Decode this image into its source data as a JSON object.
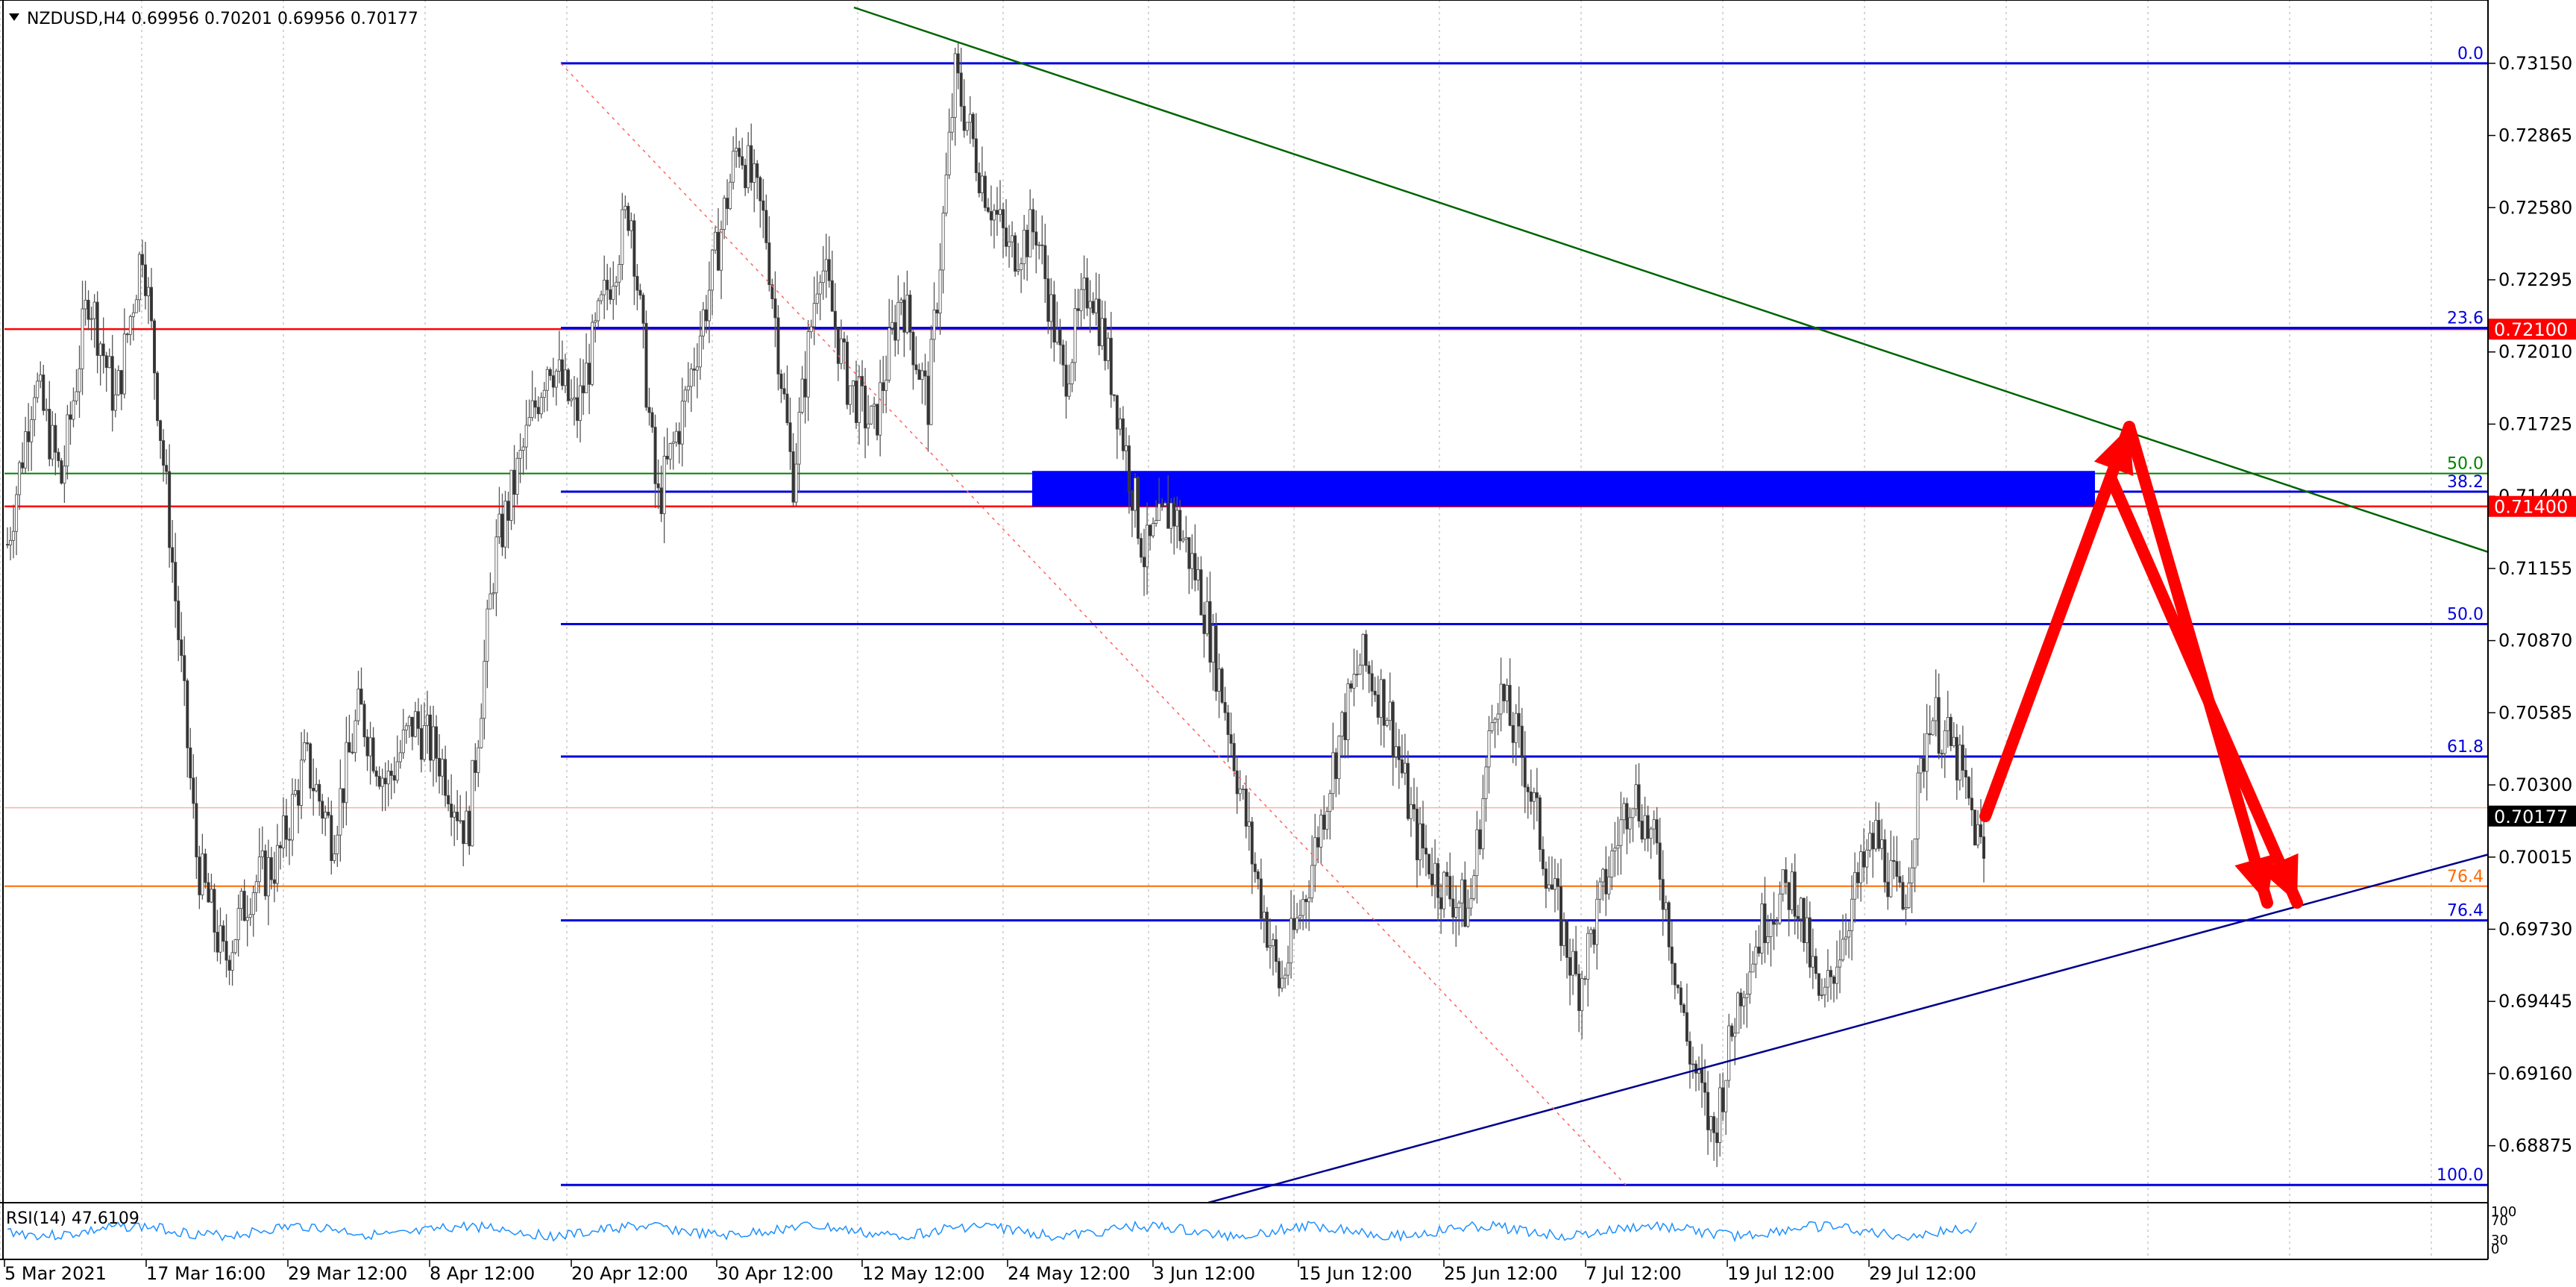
{
  "header": {
    "symbol": "NZDUSD,H4",
    "ohlc": "0.69956 0.70201 0.69956 0.70177"
  },
  "chart_data": {
    "type": "candlestick",
    "instrument": "NZDUSD",
    "timeframe": "H4",
    "ylim": [
      0.6865,
      0.734
    ],
    "price_ticks": [
      "0.73150",
      "0.72865",
      "0.72580",
      "0.72295",
      "0.72010",
      "0.71725",
      "0.71440",
      "0.71155",
      "0.70870",
      "0.70585",
      "0.70300",
      "0.70015",
      "0.69730",
      "0.69445",
      "0.69160",
      "0.68875"
    ],
    "time_ticks": [
      "5 Mar 2021",
      "17 Mar 16:00",
      "29 Mar 12:00",
      "8 Apr 12:00",
      "20 Apr 12:00",
      "30 Apr 12:00",
      "12 May 12:00",
      "24 May 12:00",
      "3 Jun 12:00",
      "15 Jun 12:00",
      "25 Jun 12:00",
      "7 Jul 12:00",
      "19 Jul 12:00",
      "29 Jul 12:00"
    ],
    "current_price": "0.70177",
    "horizontal_levels": [
      {
        "price": 0.721,
        "label": "0.72100",
        "color": "#ff0000"
      },
      {
        "price": 0.714,
        "label": "0.71400",
        "color": "#ff0000"
      }
    ],
    "fib_blue": [
      {
        "label": "0.0",
        "price": 0.7315
      },
      {
        "label": "23.6",
        "price": 0.72105
      },
      {
        "label": "38.2",
        "price": 0.71458
      },
      {
        "label": "50.0",
        "price": 0.70935
      },
      {
        "label": "61.8",
        "price": 0.70412
      },
      {
        "label": "76.4",
        "price": 0.69765
      },
      {
        "label": "100.0",
        "price": 0.6872
      }
    ],
    "fib_extra": [
      {
        "label": "50.0",
        "price": 0.7153,
        "color": "#008000"
      },
      {
        "label": "76.4",
        "price": 0.699,
        "color": "#ff6a00"
      }
    ],
    "candles_close_path": [
      0.7125,
      0.719,
      0.715,
      0.7225,
      0.718,
      0.7245,
      0.713,
      0.7,
      0.696,
      0.699,
      0.7,
      0.704,
      0.701,
      0.706,
      0.703,
      0.7055,
      0.704,
      0.701,
      0.712,
      0.716,
      0.72,
      0.7175,
      0.722,
      0.726,
      0.714,
      0.718,
      0.723,
      0.7285,
      0.725,
      0.715,
      0.724,
      0.719,
      0.717,
      0.7225,
      0.718,
      0.731,
      0.727,
      0.724,
      0.725,
      0.719,
      0.723,
      0.718,
      0.712,
      0.714,
      0.711,
      0.706,
      0.7,
      0.695,
      0.699,
      0.704,
      0.708,
      0.706,
      0.701,
      0.699,
      0.698,
      0.707,
      0.704,
      0.699,
      0.695,
      0.699,
      0.703,
      0.7,
      0.693,
      0.689,
      0.695,
      0.698,
      0.699,
      0.694,
      0.698,
      0.701,
      0.698,
      0.706,
      0.704,
      0.7
    ],
    "rsi": {
      "label": "RSI(14) 47.6109",
      "ticks": [
        "100",
        "70",
        "30",
        "0"
      ]
    }
  }
}
